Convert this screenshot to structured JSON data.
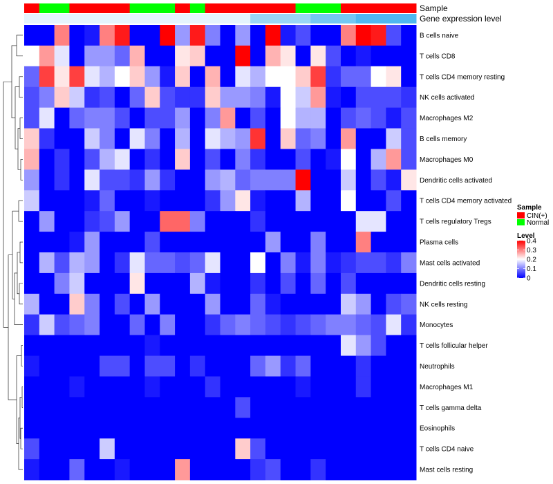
{
  "chart_data": {
    "type": "heatmap",
    "title": "",
    "tracks": {
      "sample_label": "Sample",
      "level_label": "Gene expression level",
      "sample": [
        "CIN(+)",
        "Normal",
        "Normal",
        "CIN(+)",
        "CIN(+)",
        "CIN(+)",
        "CIN(+)",
        "Normal",
        "Normal",
        "Normal",
        "CIN(+)",
        "Normal",
        "CIN(+)",
        "CIN(+)",
        "CIN(+)",
        "CIN(+)",
        "CIN(+)",
        "CIN(+)",
        "Normal",
        "Normal",
        "Normal",
        "CIN(+)",
        "CIN(+)",
        "CIN(+)",
        "CIN(+)",
        "CIN(+)"
      ],
      "expression_level": [
        0.05,
        0.05,
        0.05,
        0.05,
        0.05,
        0.05,
        0.05,
        0.05,
        0.05,
        0.05,
        0.05,
        0.05,
        0.05,
        0.05,
        0.05,
        0.15,
        0.15,
        0.15,
        0.15,
        0.2,
        0.2,
        0.2,
        0.25,
        0.25,
        0.25,
        0.25
      ]
    },
    "rows": [
      "B cells naive",
      "T cells CD8",
      "T cells CD4 memory resting",
      "NK cells activated",
      "Macrophages M2",
      "B cells memory",
      "Macrophages M0",
      "Dendritic cells activated",
      "T cells CD4 memory activated",
      "T cells regulatory  Tregs",
      "Plasma cells",
      "Mast cells activated",
      "Dendritic cells resting",
      "NK cells resting",
      "Monocytes",
      "T cells follicular helper",
      "Neutrophils",
      "Macrophages M1",
      "T cells gamma delta",
      "Eosinophils",
      "T cells CD4 naive",
      "Mast cells resting"
    ],
    "values": [
      [
        0.0,
        0.0,
        0.3,
        0.0,
        0.02,
        0.3,
        0.38,
        0.0,
        0.0,
        0.4,
        0.12,
        0.38,
        0.1,
        0.0,
        0.12,
        0.0,
        0.4,
        0.02,
        0.06,
        0.0,
        0.0,
        0.3,
        0.4,
        0.38,
        0.06,
        0.0
      ],
      [
        0.2,
        0.28,
        0.18,
        0.0,
        0.12,
        0.12,
        0.08,
        0.26,
        0.0,
        0.0,
        0.22,
        0.24,
        0.0,
        0.0,
        0.4,
        0.0,
        0.26,
        0.22,
        0.0,
        0.22,
        0.06,
        0.0,
        0.02,
        0.0,
        0.0,
        0.0
      ],
      [
        0.08,
        0.35,
        0.22,
        0.35,
        0.18,
        0.14,
        0.2,
        0.24,
        0.12,
        0.02,
        0.24,
        0.0,
        0.26,
        0.0,
        0.18,
        0.14,
        0.2,
        0.2,
        0.24,
        0.35,
        0.04,
        0.08,
        0.08,
        0.2,
        0.22,
        0.0
      ],
      [
        0.06,
        0.1,
        0.24,
        0.16,
        0.04,
        0.06,
        0.0,
        0.08,
        0.24,
        0.06,
        0.04,
        0.04,
        0.24,
        0.12,
        0.12,
        0.1,
        0.02,
        0.2,
        0.16,
        0.28,
        0.02,
        0.0,
        0.06,
        0.06,
        0.06,
        0.04
      ],
      [
        0.06,
        0.18,
        0.0,
        0.08,
        0.1,
        0.1,
        0.06,
        0.0,
        0.06,
        0.06,
        0.12,
        0.0,
        0.1,
        0.28,
        0.0,
        0.06,
        0.0,
        0.2,
        0.14,
        0.14,
        0.0,
        0.06,
        0.08,
        0.06,
        0.02,
        0.06
      ],
      [
        0.24,
        0.04,
        0.0,
        0.0,
        0.16,
        0.1,
        0.0,
        0.18,
        0.1,
        0.0,
        0.14,
        0.0,
        0.18,
        0.14,
        0.12,
        0.36,
        0.0,
        0.24,
        0.08,
        0.1,
        0.0,
        0.28,
        0.0,
        0.0,
        0.16,
        0.06
      ],
      [
        0.26,
        0.0,
        0.04,
        0.0,
        0.06,
        0.14,
        0.18,
        0.0,
        0.04,
        0.0,
        0.24,
        0.0,
        0.06,
        0.0,
        0.1,
        0.04,
        0.0,
        0.0,
        0.06,
        0.0,
        0.02,
        0.2,
        0.0,
        0.14,
        0.28,
        0.06
      ],
      [
        0.12,
        0.0,
        0.04,
        0.0,
        0.18,
        0.06,
        0.06,
        0.04,
        0.12,
        0.04,
        0.0,
        0.0,
        0.12,
        0.14,
        0.08,
        0.1,
        0.1,
        0.1,
        0.4,
        0.0,
        0.0,
        0.16,
        0.0,
        0.06,
        0.02,
        0.22
      ],
      [
        0.16,
        0.0,
        0.0,
        0.0,
        0.02,
        0.08,
        0.0,
        0.0,
        0.02,
        0.0,
        0.0,
        0.0,
        0.04,
        0.12,
        0.22,
        0.02,
        0.0,
        0.0,
        0.14,
        0.0,
        0.0,
        0.2,
        0.0,
        0.0,
        0.06,
        0.0
      ],
      [
        0.0,
        0.12,
        0.0,
        0.0,
        0.04,
        0.06,
        0.12,
        0.0,
        0.0,
        0.32,
        0.32,
        0.1,
        0.0,
        0.0,
        0.0,
        0.04,
        0.0,
        0.0,
        0.0,
        0.0,
        0.0,
        0.0,
        0.18,
        0.18,
        0.0,
        0.0
      ],
      [
        0.0,
        0.0,
        0.0,
        0.02,
        0.12,
        0.0,
        0.0,
        0.0,
        0.06,
        0.0,
        0.0,
        0.0,
        0.0,
        0.0,
        0.0,
        0.0,
        0.12,
        0.0,
        0.0,
        0.1,
        0.0,
        0.0,
        0.3,
        0.0,
        0.0,
        0.0
      ],
      [
        0.0,
        0.14,
        0.06,
        0.14,
        0.12,
        0.0,
        0.04,
        0.18,
        0.08,
        0.08,
        0.06,
        0.08,
        0.18,
        0.0,
        0.0,
        0.2,
        0.0,
        0.1,
        0.02,
        0.1,
        0.02,
        0.04,
        0.06,
        0.06,
        0.04,
        0.1
      ],
      [
        0.0,
        0.0,
        0.1,
        0.16,
        0.0,
        0.0,
        0.0,
        0.22,
        0.0,
        0.0,
        0.0,
        0.14,
        0.02,
        0.0,
        0.0,
        0.04,
        0.0,
        0.06,
        0.0,
        0.08,
        0.0,
        0.06,
        0.0,
        0.0,
        0.0,
        0.0
      ],
      [
        0.14,
        0.0,
        0.0,
        0.24,
        0.1,
        0.0,
        0.06,
        0.0,
        0.12,
        0.0,
        0.0,
        0.0,
        0.12,
        0.0,
        0.0,
        0.08,
        0.02,
        0.0,
        0.0,
        0.0,
        0.0,
        0.16,
        0.12,
        0.0,
        0.06,
        0.08
      ],
      [
        0.04,
        0.16,
        0.06,
        0.08,
        0.1,
        0.0,
        0.0,
        0.08,
        0.0,
        0.1,
        0.0,
        0.0,
        0.04,
        0.08,
        0.1,
        0.08,
        0.06,
        0.04,
        0.06,
        0.08,
        0.1,
        0.1,
        0.08,
        0.06,
        0.18,
        0.04
      ],
      [
        0.0,
        0.0,
        0.0,
        0.0,
        0.0,
        0.0,
        0.0,
        0.0,
        0.02,
        0.0,
        0.0,
        0.0,
        0.0,
        0.0,
        0.0,
        0.0,
        0.0,
        0.0,
        0.0,
        0.0,
        0.0,
        0.18,
        0.12,
        0.06,
        0.0,
        0.0
      ],
      [
        0.02,
        0.0,
        0.0,
        0.0,
        0.0,
        0.06,
        0.06,
        0.0,
        0.06,
        0.06,
        0.0,
        0.04,
        0.0,
        0.0,
        0.0,
        0.08,
        0.12,
        0.04,
        0.08,
        0.0,
        0.0,
        0.0,
        0.04,
        0.0,
        0.0,
        0.0
      ],
      [
        0.0,
        0.0,
        0.0,
        0.02,
        0.0,
        0.0,
        0.0,
        0.0,
        0.02,
        0.0,
        0.0,
        0.0,
        0.04,
        0.0,
        0.0,
        0.0,
        0.0,
        0.0,
        0.02,
        0.0,
        0.0,
        0.0,
        0.04,
        0.0,
        0.0,
        0.0
      ],
      [
        0.0,
        0.0,
        0.0,
        0.0,
        0.0,
        0.0,
        0.0,
        0.0,
        0.0,
        0.0,
        0.0,
        0.0,
        0.0,
        0.0,
        0.06,
        0.0,
        0.0,
        0.0,
        0.0,
        0.0,
        0.0,
        0.0,
        0.0,
        0.0,
        0.0,
        0.0
      ],
      [
        0.0,
        0.0,
        0.0,
        0.0,
        0.0,
        0.0,
        0.0,
        0.0,
        0.0,
        0.0,
        0.0,
        0.0,
        0.0,
        0.0,
        0.0,
        0.0,
        0.0,
        0.0,
        0.0,
        0.0,
        0.0,
        0.0,
        0.0,
        0.0,
        0.0,
        0.0
      ],
      [
        0.06,
        0.0,
        0.0,
        0.0,
        0.0,
        0.16,
        0.0,
        0.0,
        0.0,
        0.0,
        0.0,
        0.0,
        0.0,
        0.0,
        0.24,
        0.06,
        0.0,
        0.0,
        0.0,
        0.0,
        0.0,
        0.0,
        0.0,
        0.0,
        0.0,
        0.0
      ],
      [
        0.02,
        0.0,
        0.0,
        0.08,
        0.0,
        0.0,
        0.02,
        0.0,
        0.0,
        0.0,
        0.28,
        0.0,
        0.0,
        0.0,
        0.0,
        0.04,
        0.06,
        0.0,
        0.0,
        0.04,
        0.0,
        0.0,
        0.0,
        0.0,
        0.0,
        0.0
      ]
    ],
    "legend": {
      "sample_title": "Sample",
      "sample_entries": [
        {
          "label": "CIN(+)",
          "color": "#ff0000"
        },
        {
          "label": "Normal",
          "color": "#00ff00"
        }
      ],
      "level_title": "Level",
      "level_ticks": [
        {
          "value": 0.4,
          "label": "0.4"
        },
        {
          "value": 0.3,
          "label": "0.3"
        },
        {
          "value": 0.2,
          "label": "0.2"
        },
        {
          "value": 0.1,
          "label": "0.1"
        },
        {
          "value": 0.0,
          "label": "0"
        }
      ],
      "level_range": [
        0,
        0.4
      ]
    },
    "colors": {
      "low": "#0000ff",
      "mid": "#ffffff",
      "high": "#ff0000",
      "track_low": "#ffffff",
      "track_high": "#4fb8f0"
    }
  }
}
